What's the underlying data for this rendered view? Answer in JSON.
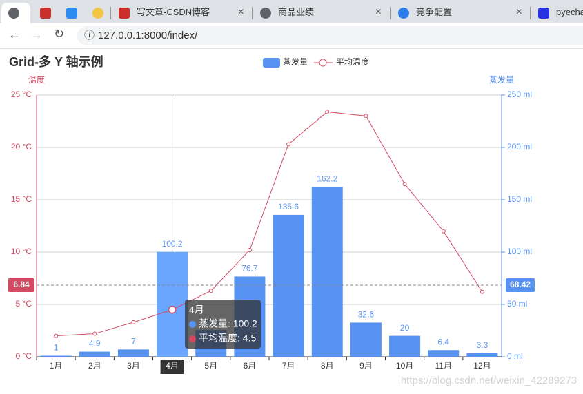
{
  "browser": {
    "tabs": [
      "写文章-CSDN博客",
      "商品业绩",
      "竞争配置",
      "pyecha"
    ],
    "url": "127.0.0.1:8000/index/"
  },
  "chart_data": {
    "type": "bar",
    "title": "Grid-多 Y 轴示例",
    "categories": [
      "1月",
      "2月",
      "3月",
      "4月",
      "5月",
      "6月",
      "7月",
      "8月",
      "9月",
      "10月",
      "11月",
      "12月"
    ],
    "series": [
      {
        "name": "蒸发量",
        "type": "bar",
        "axis": "y2",
        "color": "#5793f3",
        "values": [
          1,
          4.9,
          7,
          100.2,
          25.6,
          76.7,
          135.6,
          162.2,
          32.6,
          20,
          6.4,
          3.3
        ]
      },
      {
        "name": "平均温度",
        "type": "line",
        "axis": "y",
        "color": "#d14a61",
        "values": [
          2.0,
          2.2,
          3.3,
          4.5,
          6.3,
          10.2,
          20.3,
          23.4,
          23.0,
          16.5,
          12.0,
          6.2
        ]
      }
    ],
    "ylabel": "温度",
    "y2label": "蒸发量",
    "ylim": [
      0,
      25
    ],
    "yticks": [
      {
        "value": 0,
        "label": "0 °C"
      },
      {
        "value": 5,
        "label": "5 °C"
      },
      {
        "value": 10,
        "label": "10 °C"
      },
      {
        "value": 15,
        "label": "15 °C"
      },
      {
        "value": 20,
        "label": "20 °C"
      },
      {
        "value": 25,
        "label": "25 °C"
      }
    ],
    "y2lim": [
      0,
      250
    ],
    "y2ticks": [
      {
        "value": 0,
        "label": "0 ml"
      },
      {
        "value": 50,
        "label": "50 ml"
      },
      {
        "value": 100,
        "label": "100 ml"
      },
      {
        "value": 150,
        "label": "150 ml"
      },
      {
        "value": 200,
        "label": "200 ml"
      },
      {
        "value": 250,
        "label": "250 ml"
      }
    ],
    "grid": true,
    "legend": "top",
    "axis_pointer": {
      "category": 3,
      "y": 6.84,
      "y2": 68.42
    },
    "tooltip": {
      "title": "4月",
      "items": [
        "蒸发量: 100.2",
        "平均温度: 4.5"
      ]
    },
    "watermark": "https://blog.csdn.net/weixin_42289273"
  }
}
